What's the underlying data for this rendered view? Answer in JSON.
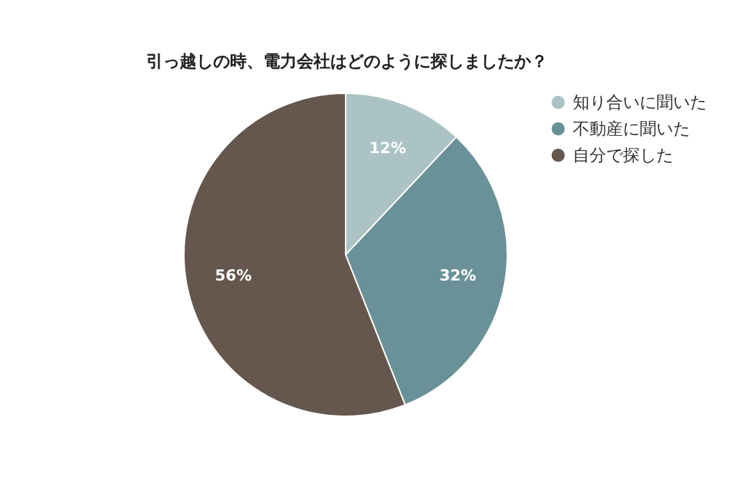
{
  "chart_data": {
    "type": "pie",
    "title": "引っ越しの時、電力会社はどのように探しましたか？",
    "categories": [
      "知り合いに聞いた",
      "不動産に聞いた",
      "自分で探した"
    ],
    "values": [
      12,
      32,
      56
    ],
    "colors": [
      "#abc3c5",
      "#6a9197",
      "#65574d"
    ],
    "value_labels": [
      "12%",
      "32%",
      "56%"
    ],
    "legend": "right"
  }
}
